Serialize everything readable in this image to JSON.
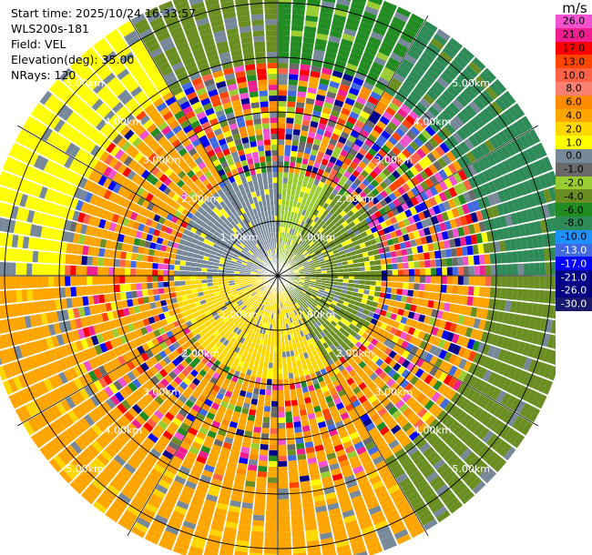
{
  "info": {
    "start_time": "Start time: 2025/10/24 16:33:57",
    "device": "WLS200s-181",
    "field": "Field: VEL",
    "elevation": "Elevation(deg): 35.00",
    "nrays": "NRays: 120"
  },
  "colorbar": {
    "unit": "m/s",
    "levels": [
      {
        "label": "26.0",
        "color": "#f052d0"
      },
      {
        "label": "21.0",
        "color": "#f01f8f"
      },
      {
        "label": "17.0",
        "color": "#ff0000"
      },
      {
        "label": "13.0",
        "color": "#ff4500"
      },
      {
        "label": "10.0",
        "color": "#ff6347"
      },
      {
        "label": "8.0",
        "color": "#fa8072"
      },
      {
        "label": "6.0",
        "color": "#ff8c00"
      },
      {
        "label": "4.0",
        "color": "#ffa500"
      },
      {
        "label": "2.0",
        "color": "#ffd700"
      },
      {
        "label": "1.0",
        "color": "#ffff00"
      },
      {
        "label": "0.0",
        "color": "#778899"
      },
      {
        "label": "-1.0",
        "color": "#696969"
      },
      {
        "label": "-2.0",
        "color": "#9acd32"
      },
      {
        "label": "-4.0",
        "color": "#6b8e23"
      },
      {
        "label": "-6.0",
        "color": "#228b22"
      },
      {
        "label": "-8.0",
        "color": "#2e8b57"
      },
      {
        "label": "-10.0",
        "color": "#1e90ff"
      },
      {
        "label": "-13.0",
        "color": "#4169e1"
      },
      {
        "label": "-17.0",
        "color": "#0000ff"
      },
      {
        "label": "-21.0",
        "color": "#00008b"
      },
      {
        "label": "-26.0",
        "color": "#000080"
      },
      {
        "label": "-30.0",
        "color": "#191970"
      }
    ]
  },
  "chart_data": {
    "type": "ppi",
    "field": "VEL",
    "units": "m/s",
    "nrays": 120,
    "elevation_deg": 35.0,
    "range_rings_km": [
      1.0,
      2.0,
      3.0,
      4.0,
      5.0
    ],
    "ring_labels": [
      "1.00km",
      "2.00km",
      "3.00km",
      "4.00km",
      "5.00km"
    ],
    "max_range_km": 5.4,
    "sectors": [
      {
        "az_from": 0,
        "az_to": 30,
        "near": "-2.0",
        "mid": "mixed",
        "far": "-6.0"
      },
      {
        "az_from": 30,
        "az_to": 90,
        "near": "-4.0",
        "mid": "mixed",
        "far": "-8.0"
      },
      {
        "az_from": 90,
        "az_to": 150,
        "near": "-4.0",
        "mid": "4.0",
        "far": "-4.0"
      },
      {
        "az_from": 150,
        "az_to": 210,
        "near": "2.0",
        "mid": "4.0",
        "far": "4.0"
      },
      {
        "az_from": 210,
        "az_to": 270,
        "near": "2.0",
        "mid": "4.0",
        "far": "4.0"
      },
      {
        "az_from": 270,
        "az_to": 330,
        "near": "0.0",
        "mid": "4.0",
        "far": "1.0"
      },
      {
        "az_from": 330,
        "az_to": 360,
        "near": "0.0",
        "mid": "mixed",
        "far": "-4.0"
      }
    ]
  }
}
